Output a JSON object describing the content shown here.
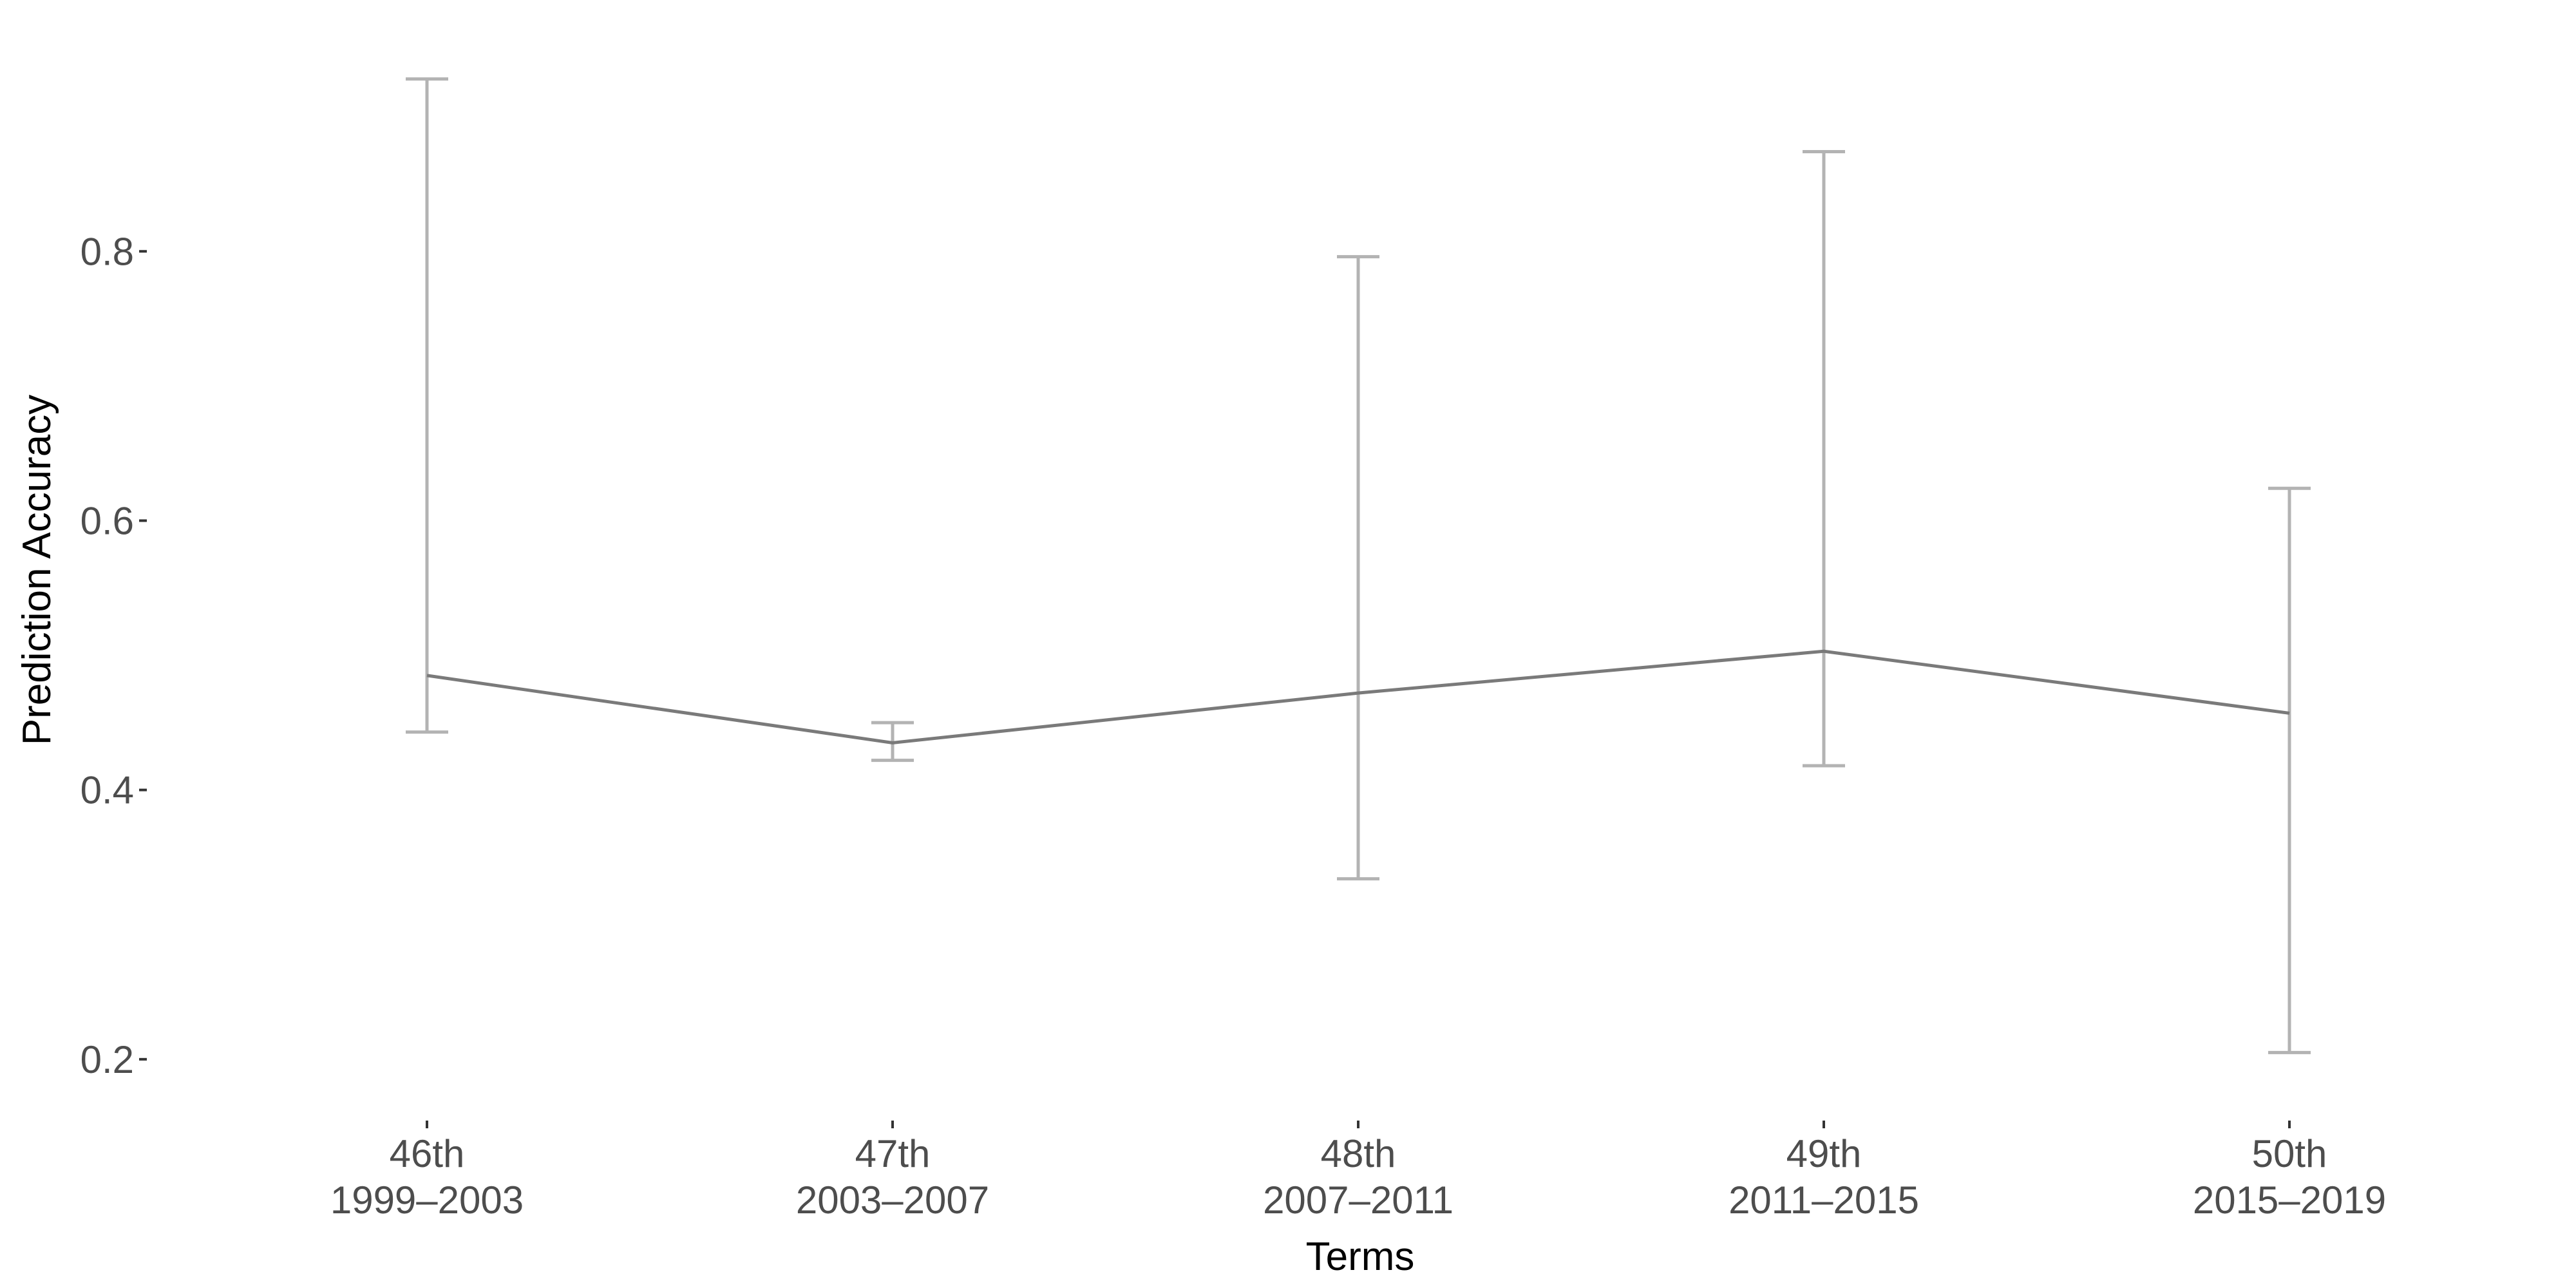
{
  "chart_data": {
    "type": "line",
    "title": "",
    "xlabel": "Terms",
    "ylabel": "Prediction Accuracy",
    "categories": [
      {
        "term": "46th",
        "years": "1999–2003"
      },
      {
        "term": "47th",
        "years": "2003–2007"
      },
      {
        "term": "48th",
        "years": "2007–2011"
      },
      {
        "term": "49th",
        "years": "2011–2015"
      },
      {
        "term": "50th",
        "years": "2015–2019"
      }
    ],
    "series": [
      {
        "values": [
          0.485,
          0.435,
          0.472,
          0.503,
          0.457
        ],
        "lower": [
          0.443,
          0.422,
          0.334,
          0.418,
          0.205
        ],
        "upper": [
          0.928,
          0.45,
          0.796,
          0.874,
          0.624
        ]
      }
    ],
    "ylim": [
      0.165,
      0.935
    ],
    "yticks": [
      0.2,
      0.4,
      0.6,
      0.8
    ],
    "yticklabels": [
      "0.2",
      "0.4",
      "0.6",
      "0.8"
    ],
    "grid": false,
    "legend": "none",
    "colors": {
      "line": "#7a7a7a",
      "error_bar": "#b3b3b3",
      "text": "#4d4d4d"
    }
  }
}
